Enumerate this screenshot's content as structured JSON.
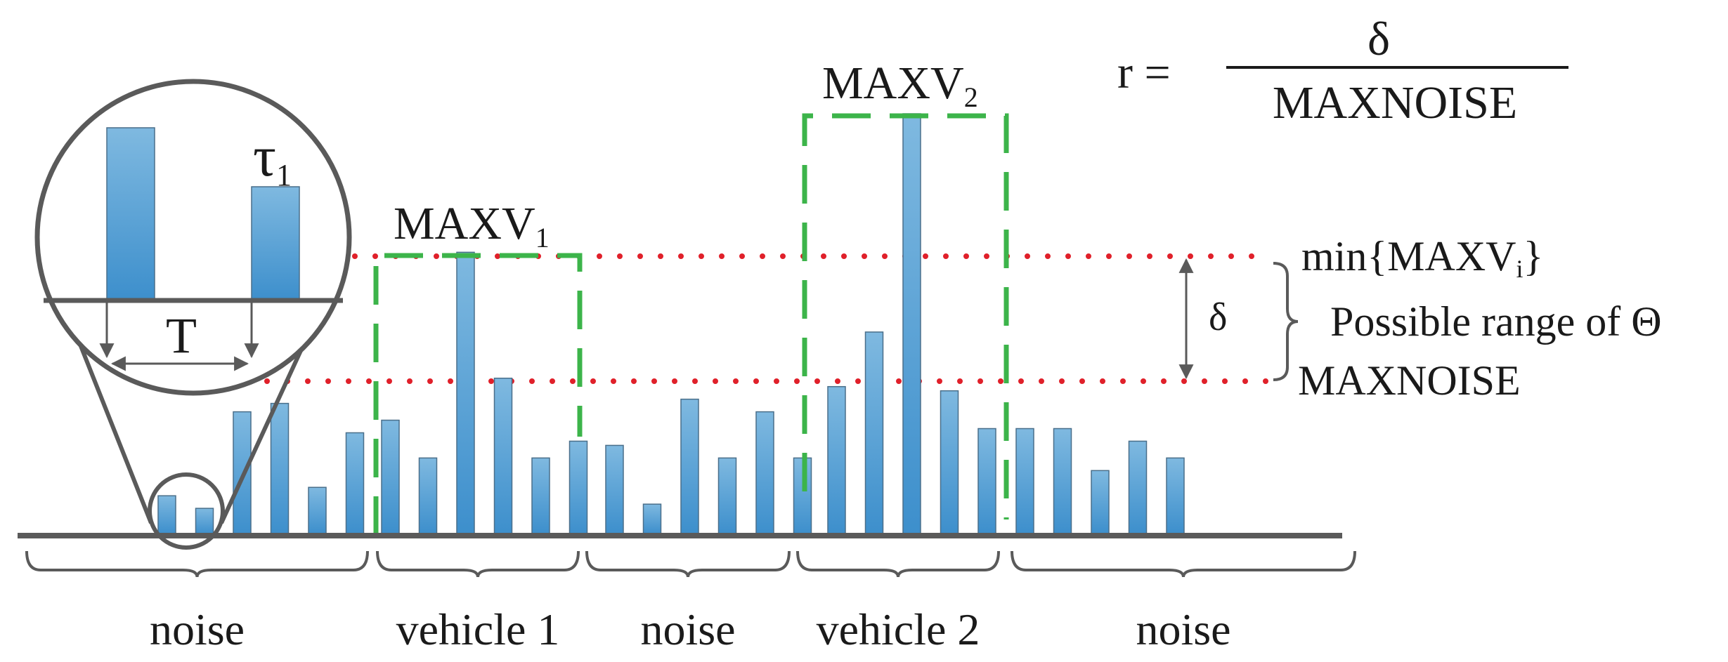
{
  "formula": {
    "lhs": "r =",
    "numerator": "δ",
    "denominator": "MAXNOISE"
  },
  "peaks": {
    "maxv1": {
      "base": "MAXV",
      "sub": "1"
    },
    "maxv2": {
      "base": "MAXV",
      "sub": "2"
    }
  },
  "thresholds": {
    "min_label_prefix": "min{MAXV",
    "min_label_sub": "i",
    "min_label_suffix": "}",
    "range_label": "Possible range of Θ",
    "maxnoise_label": "MAXNOISE",
    "delta_label": "δ",
    "upper_level": 0.666,
    "lower_level": 0.369
  },
  "inset": {
    "tau_base": "τ",
    "tau_sub": "1",
    "period_label": "T",
    "bars": [
      0.95,
      0.61
    ]
  },
  "segments": [
    {
      "label": "noise",
      "bars": [
        0.09,
        0.06,
        0.29,
        0.31,
        0.11,
        0.24
      ]
    },
    {
      "label": "vehicle 1",
      "bars": [
        0.27,
        0.18,
        0.67,
        0.37,
        0.18,
        0.22
      ]
    },
    {
      "label": "noise",
      "bars": [
        0.21,
        0.07,
        0.32,
        0.18,
        0.29,
        0.18
      ]
    },
    {
      "label": "vehicle 2",
      "bars": [
        0.35,
        0.48,
        1.0,
        0.34,
        0.25
      ]
    },
    {
      "label": "noise",
      "bars": [
        0.25,
        0.25,
        0.15,
        0.22,
        0.18
      ]
    }
  ],
  "colors": {
    "bar": "#5aa3d5",
    "threshold": "#e0202a",
    "window": "#3cb44a",
    "axis": "#5a5a5a"
  }
}
